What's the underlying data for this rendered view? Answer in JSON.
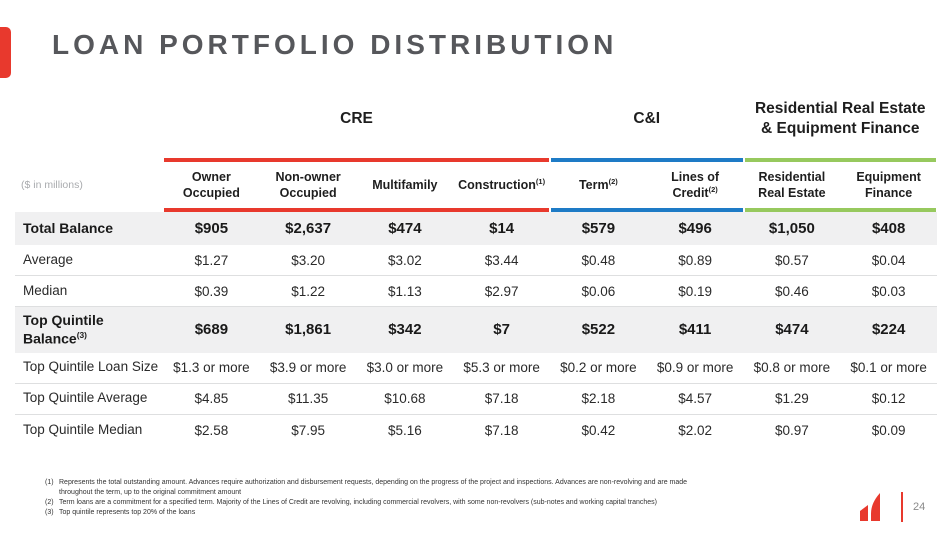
{
  "slide": {
    "title": "LOAN PORTFOLIO DISTRIBUTION",
    "units_note": "($ in millions)",
    "page_number": "24"
  },
  "colors": {
    "accent_red": "#E8392D",
    "cre_red": "#E8392D",
    "ci_blue": "#1E7BC6",
    "rre_green": "#97C95E",
    "shaded_row": "#F0F0F1",
    "title_gray": "#56575B"
  },
  "table": {
    "groups": [
      {
        "label": "CRE",
        "color": "#E8392D",
        "span": 4
      },
      {
        "label": "C&I",
        "color": "#1E7BC6",
        "span": 2
      },
      {
        "label": "Residential Real Estate & Equipment Finance",
        "color": "#97C95E",
        "span": 2
      }
    ],
    "columns": [
      {
        "label": "Owner Occupied",
        "sup": ""
      },
      {
        "label": "Non-owner Occupied",
        "sup": ""
      },
      {
        "label": "Multifamily",
        "sup": ""
      },
      {
        "label": "Construction",
        "sup": "(1)"
      },
      {
        "label": "Term",
        "sup": "(2)"
      },
      {
        "label": "Lines of Credit",
        "sup": "(2)"
      },
      {
        "label": "Residential Real Estate",
        "sup": ""
      },
      {
        "label": "Equipment Finance",
        "sup": ""
      }
    ],
    "rows": [
      {
        "label": "Total Balance",
        "sup": "",
        "shaded": true,
        "values": [
          "$905",
          "$2,637",
          "$474",
          "$14",
          "$579",
          "$496",
          "$1,050",
          "$408"
        ]
      },
      {
        "label": "Average",
        "sup": "",
        "shaded": false,
        "values": [
          "$1.27",
          "$3.20",
          "$3.02",
          "$3.44",
          "$0.48",
          "$0.89",
          "$0.57",
          "$0.04"
        ]
      },
      {
        "label": "Median",
        "sup": "",
        "shaded": false,
        "values": [
          "$0.39",
          "$1.22",
          "$1.13",
          "$2.97",
          "$0.06",
          "$0.19",
          "$0.46",
          "$0.03"
        ]
      },
      {
        "label": "Top Quintile Balance",
        "sup": "(3)",
        "shaded": true,
        "values": [
          "$689",
          "$1,861",
          "$342",
          "$7",
          "$522",
          "$411",
          "$474",
          "$224"
        ]
      },
      {
        "label": "Top Quintile Loan Size",
        "sup": "",
        "shaded": false,
        "values": [
          "$1.3 or more",
          "$3.9 or more",
          "$3.0 or more",
          "$5.3 or more",
          "$0.2 or more",
          "$0.9 or more",
          "$0.8 or more",
          "$0.1 or more"
        ]
      },
      {
        "label": "Top Quintile Average",
        "sup": "",
        "shaded": false,
        "values": [
          "$4.85",
          "$11.35",
          "$10.68",
          "$7.18",
          "$2.18",
          "$4.57",
          "$1.29",
          "$0.12"
        ]
      },
      {
        "label": "Top Quintile Median",
        "sup": "",
        "shaded": false,
        "values": [
          "$2.58",
          "$7.95",
          "$5.16",
          "$7.18",
          "$0.42",
          "$2.02",
          "$0.97",
          "$0.09"
        ]
      }
    ]
  },
  "footnotes": [
    {
      "num": "(1)",
      "text": "Represents the total outstanding amount. Advances require authorization and disbursement requests, depending on the progress of the project and inspections. Advances are non-revolving and are made throughout the term, up to the original commitment amount"
    },
    {
      "num": "(2)",
      "text": "Term loans are a commitment for a specified term. Majority of the Lines of Credit are revolving, including commercial revolvers, with some non-revolvers (sub-notes and working capital tranches)"
    },
    {
      "num": "(3)",
      "text": "Top quintile represents top 20% of the loans"
    }
  ]
}
